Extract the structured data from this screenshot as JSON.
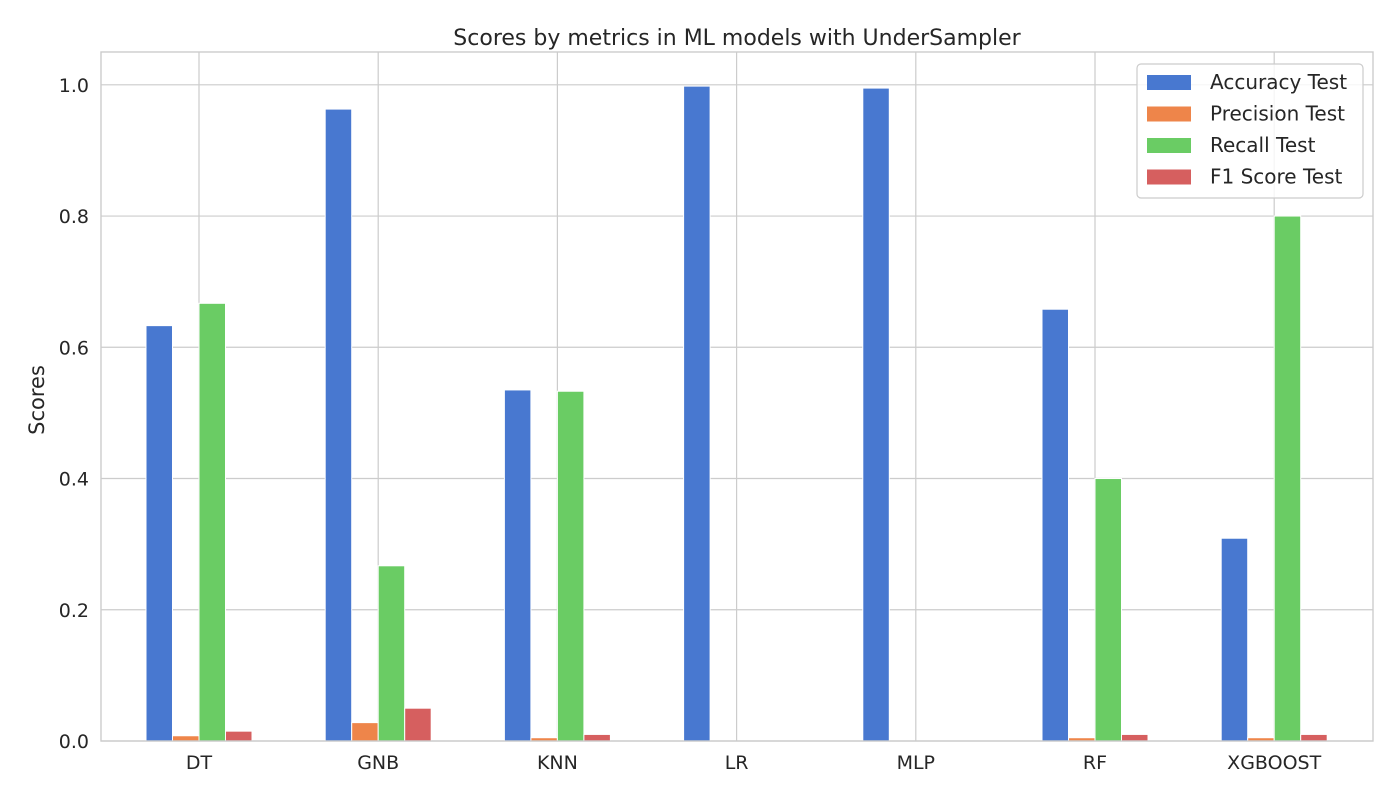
{
  "chart_data": {
    "type": "bar",
    "title": "Scores by metrics in ML models with UnderSampler",
    "xlabel": "",
    "ylabel": "Scores",
    "ylim": [
      0,
      1.05
    ],
    "yticks": [
      0.0,
      0.2,
      0.4,
      0.6,
      0.8,
      1.0
    ],
    "ytick_labels": [
      "0.0",
      "0.2",
      "0.4",
      "0.6",
      "0.8",
      "1.0"
    ],
    "categories": [
      "DT",
      "GNB",
      "KNN",
      "LR",
      "MLP",
      "RF",
      "XGBOOST"
    ],
    "grid": true,
    "legend_position": "top-right",
    "series": [
      {
        "name": "Accuracy Test",
        "color": "#4878d0",
        "values": [
          0.633,
          0.963,
          0.535,
          0.998,
          0.995,
          0.658,
          0.309
        ]
      },
      {
        "name": "Precision Test",
        "color": "#ee854a",
        "values": [
          0.008,
          0.028,
          0.005,
          0.0,
          0.0,
          0.005,
          0.005
        ]
      },
      {
        "name": "Recall Test",
        "color": "#6acc64",
        "values": [
          0.667,
          0.267,
          0.533,
          0.0,
          0.0,
          0.4,
          0.8
        ]
      },
      {
        "name": "F1 Score Test",
        "color": "#d65f5f",
        "values": [
          0.015,
          0.05,
          0.01,
          0.0,
          0.0,
          0.01,
          0.01
        ]
      }
    ]
  }
}
